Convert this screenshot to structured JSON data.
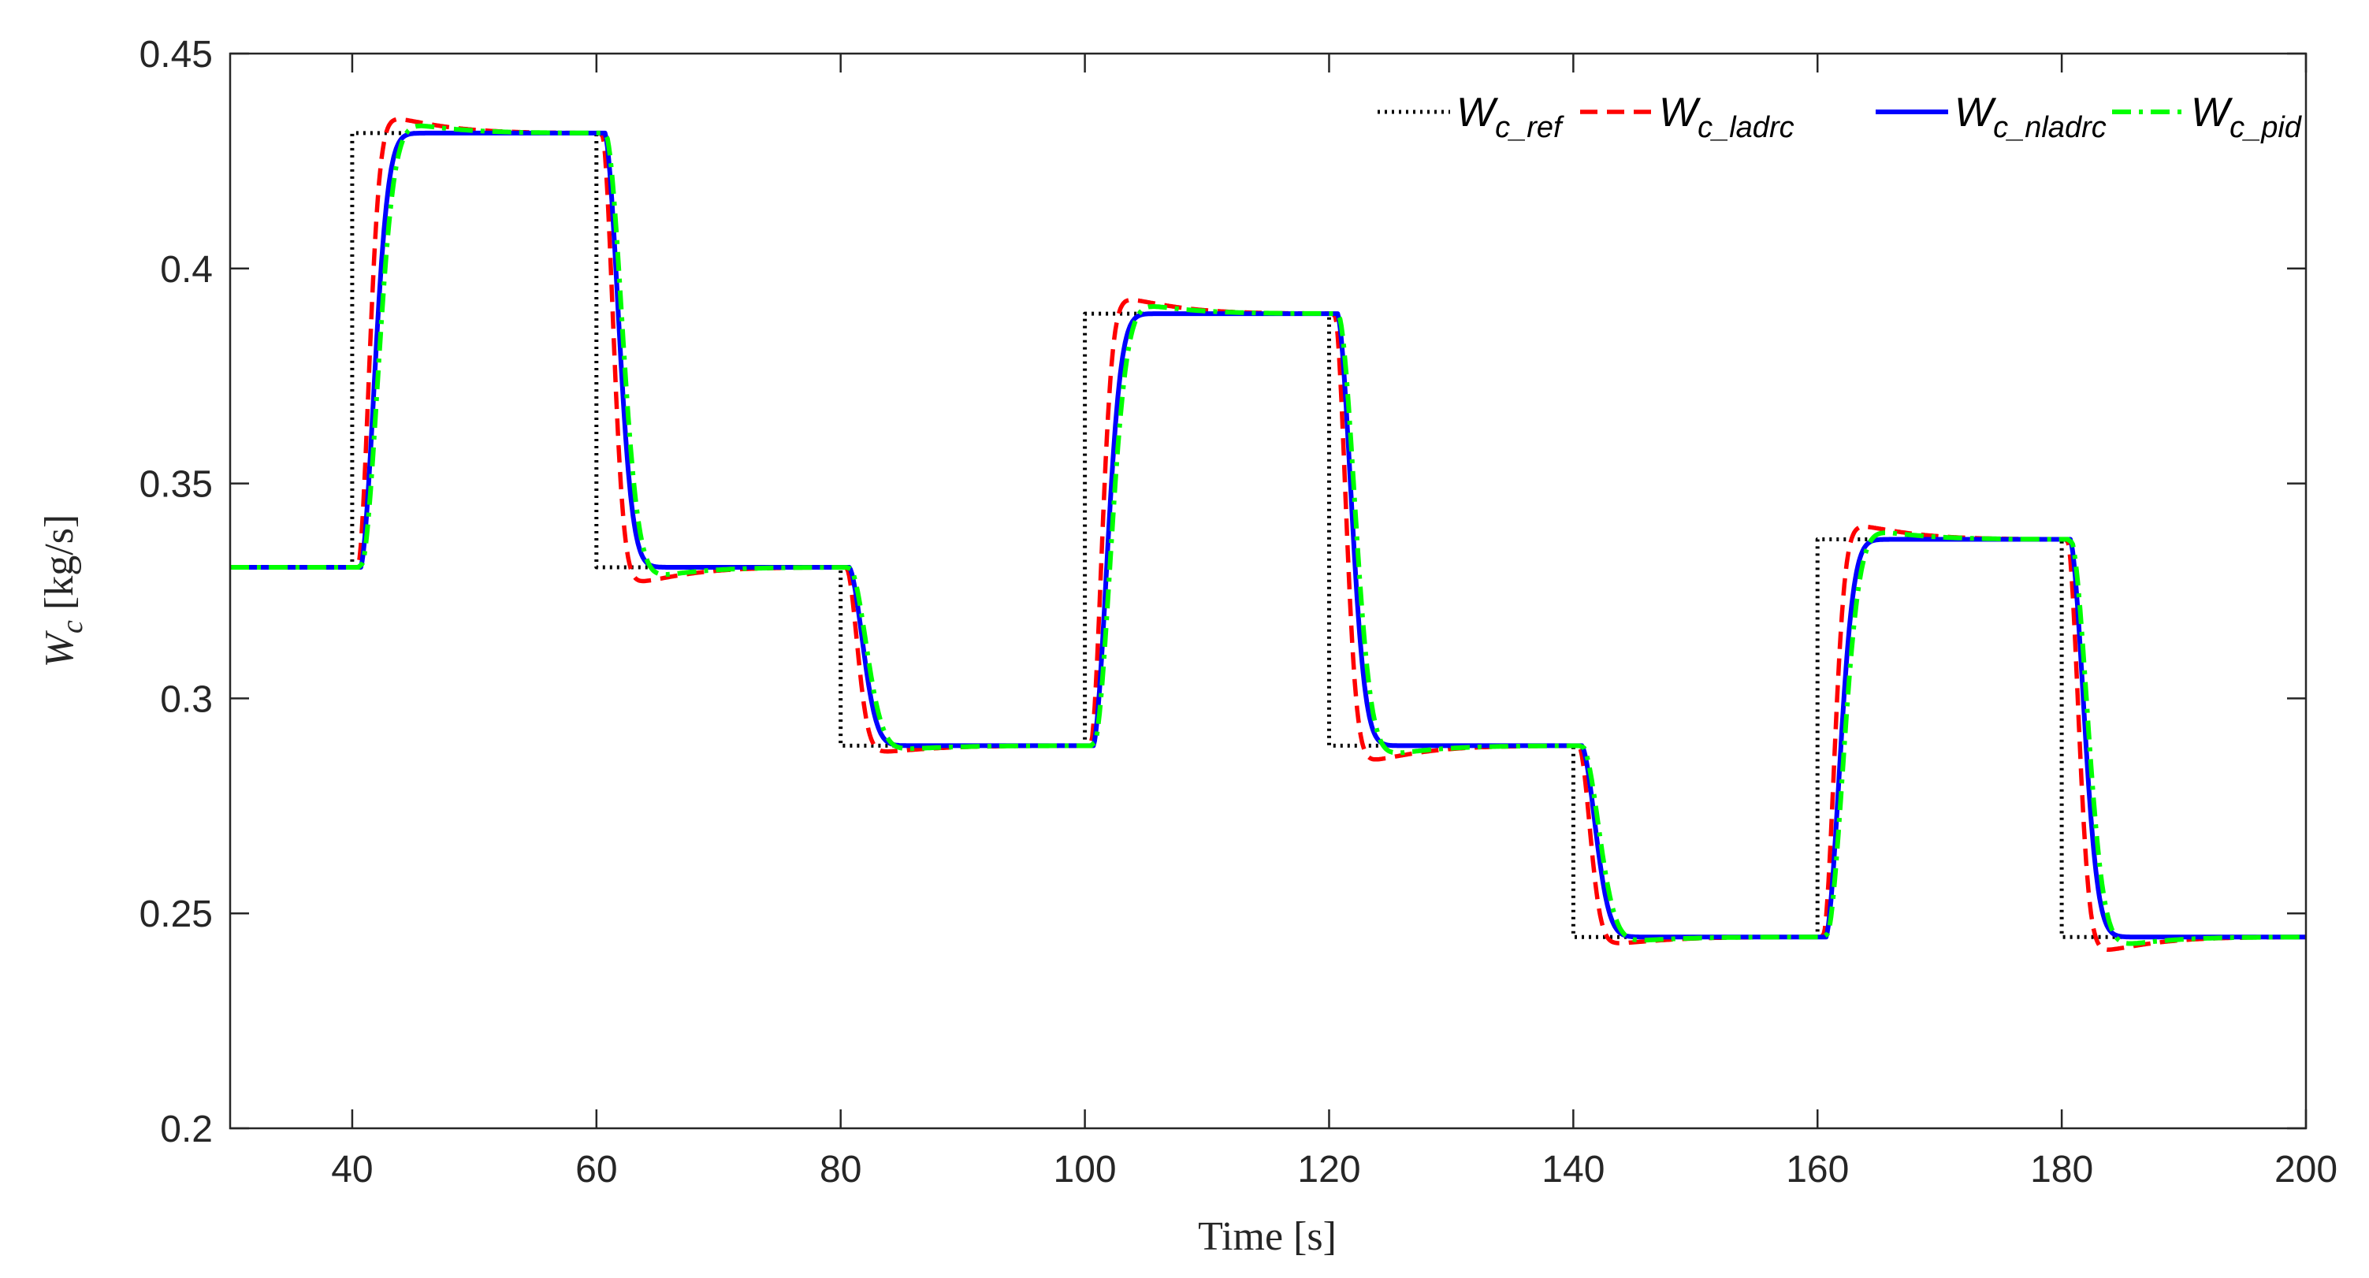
{
  "chart_data": {
    "type": "line",
    "title": "",
    "xlabel": "Time [s]",
    "ylabel": {
      "main": "W",
      "sub": "c",
      "unit": " [kg/s]"
    },
    "xlim": [
      30,
      200
    ],
    "ylim": [
      0.2,
      0.45
    ],
    "xticks": [
      40,
      60,
      80,
      100,
      120,
      140,
      160,
      180,
      200
    ],
    "yticks": [
      0.2,
      0.25,
      0.3,
      0.35,
      0.4,
      0.45
    ],
    "ytick_labels": [
      "0.2",
      "0.25",
      "0.3",
      "0.35",
      "0.4",
      "0.45"
    ],
    "grid": false,
    "legend_position": "top-right",
    "steps": {
      "times": [
        30,
        40,
        60,
        80,
        100,
        120,
        140,
        160,
        180
      ],
      "levels": [
        0.3305,
        0.4315,
        0.3305,
        0.289,
        0.3895,
        0.289,
        0.2445,
        0.337,
        0.2445
      ]
    },
    "series": [
      {
        "name": "W_c_ref",
        "label_main": "W",
        "label_sub": "c_ref",
        "color": "#000000",
        "style": "dotted",
        "overshoot": 0,
        "delay": 0,
        "tau": 0
      },
      {
        "name": "W_c_ladrc",
        "label_main": "W",
        "label_sub": "c_ladrc",
        "color": "#ff0000",
        "style": "dashed",
        "overshoot": 0.07,
        "delay": 0.3,
        "tau": 1.0
      },
      {
        "name": "W_c_nladrc",
        "label_main": "W",
        "label_sub": "c_nladrc",
        "color": "#0000ff",
        "style": "solid",
        "overshoot": 0,
        "delay": 0.4,
        "tau": 1.3
      },
      {
        "name": "W_c_pid",
        "label_main": "W",
        "label_sub": "c_pid",
        "color": "#00ff00",
        "style": "dashdot",
        "overshoot": 0.05,
        "delay": 0.5,
        "tau": 1.5
      }
    ]
  }
}
